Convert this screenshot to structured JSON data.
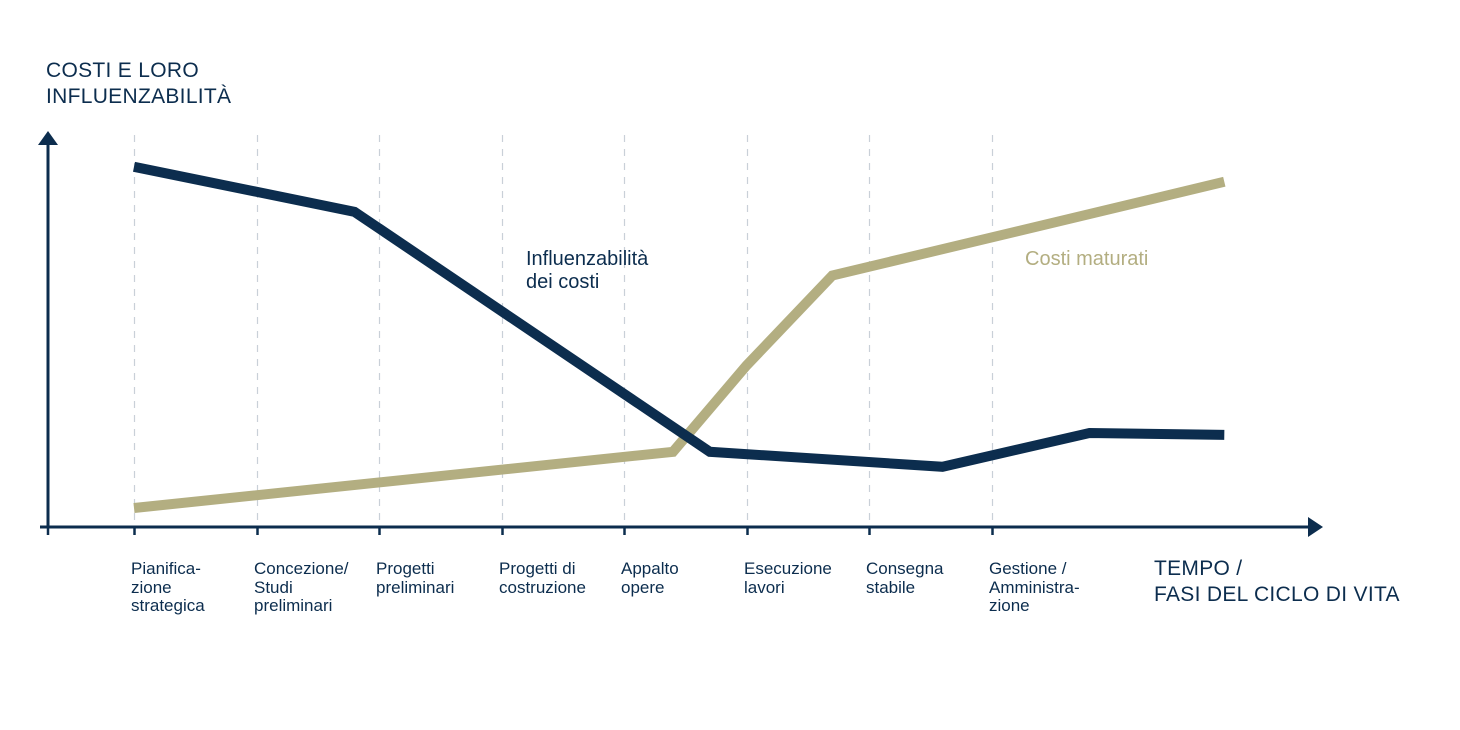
{
  "chart_data": {
    "type": "line",
    "title": "",
    "ylabel": "COSTI E LORO\nINFLUENZABILITÀ",
    "xlabel": "TEMPO /\nFASI DEL CICLO DI VITA",
    "grid": "vertical-dashed",
    "ylim": [
      0,
      100
    ],
    "xlim": [
      -0.7,
      9.5
    ],
    "categories": [
      "Pianifica-\nzione\nstrategica",
      "Concezione/\nStudi\npreliminari",
      "Progetti\npreliminari",
      "Progetti di\ncostruzione",
      "Appalto\nopere",
      "Esecuzione\nlavori",
      "Consegna\nstabile",
      "Gestione /\nAmministra-\nzione"
    ],
    "series": [
      {
        "name": "Influenzabilità dei costi",
        "label": "Influenzabilità\ndei costi",
        "color": "#0c2d4e",
        "points": [
          [
            0,
            95
          ],
          [
            1.8,
            83
          ],
          [
            4.7,
            19
          ],
          [
            6.6,
            15
          ],
          [
            7.8,
            24
          ],
          [
            8.9,
            23.5
          ]
        ]
      },
      {
        "name": "Costi maturati",
        "label": "Costi maturati",
        "color": "#b3ae81",
        "points": [
          [
            0,
            4
          ],
          [
            4.4,
            19
          ],
          [
            5.0,
            42
          ],
          [
            5.7,
            66
          ],
          [
            8.9,
            91
          ]
        ]
      }
    ]
  },
  "colors": {
    "axis": "#0c2d4e",
    "grid": "#c9d0d8"
  }
}
